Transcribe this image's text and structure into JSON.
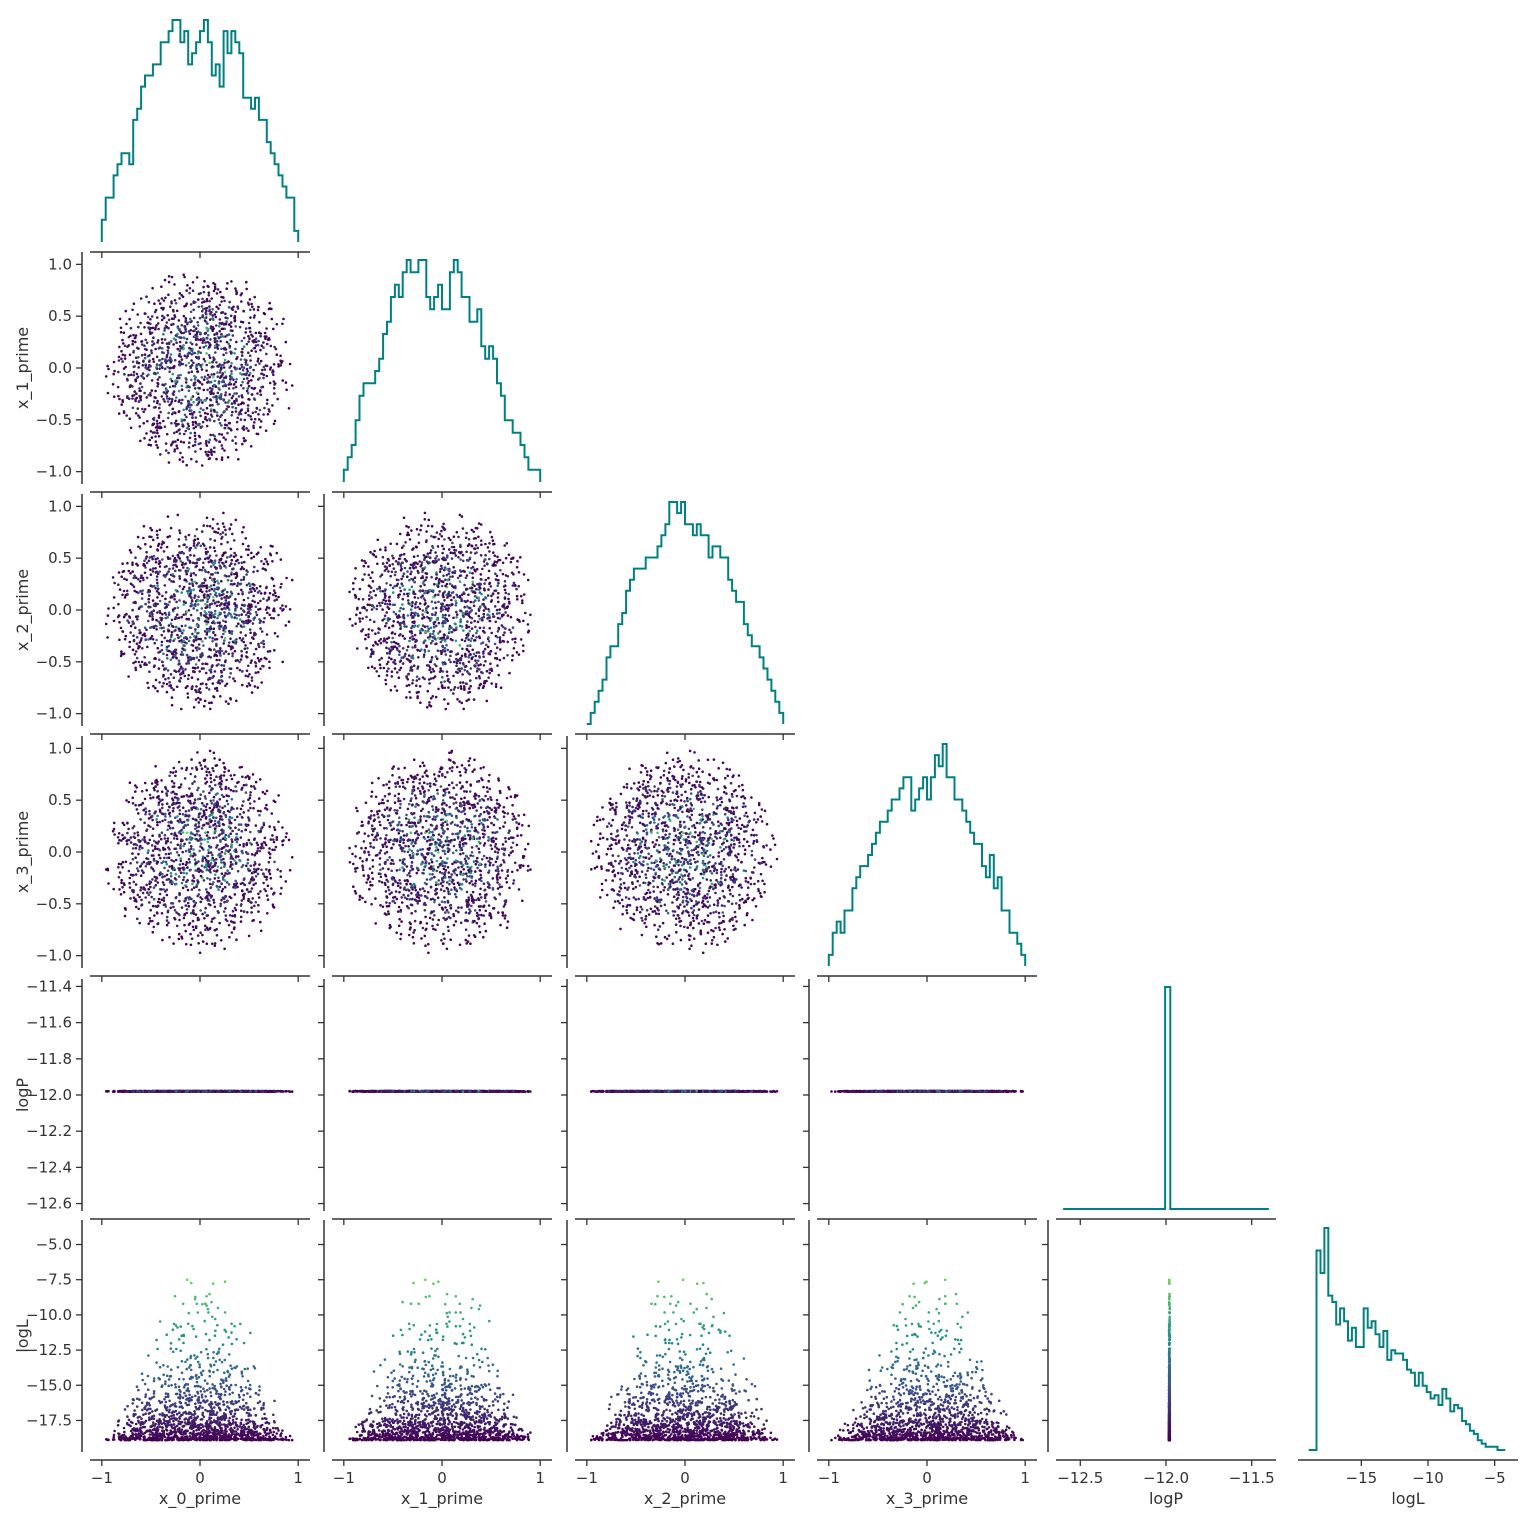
{
  "chart_data": {
    "type": "scatter",
    "title": "",
    "variables": [
      "x_0_prime",
      "x_1_prime",
      "x_2_prime",
      "x_3_prime",
      "logP",
      "logL"
    ],
    "layout": "corner",
    "diagonal": "step-histogram",
    "histogram_color": "#008080",
    "colormap": "viridis",
    "color_by": "logL",
    "colormap_stops": [
      "#440154",
      "#3b528b",
      "#21918c",
      "#5ec962",
      "#fde725"
    ],
    "grid": false,
    "n_samples_shown": 1400,
    "ranges": {
      "x_0_prime": [
        -1,
        1
      ],
      "x_1_prime": [
        -1,
        1
      ],
      "x_2_prime": [
        -1,
        1
      ],
      "x_3_prime": [
        -1,
        1
      ],
      "logP": [
        -12.6,
        -11.4
      ],
      "logL": [
        -18.9,
        -4.2
      ]
    },
    "view_limits": {
      "x_0_prime": [
        -1.1,
        1.1
      ],
      "x_1_prime": [
        -1.1,
        1.1
      ],
      "x_2_prime": [
        -1.1,
        1.1
      ],
      "x_3_prime": [
        -1.1,
        1.1
      ],
      "logP": [
        -12.63,
        -11.37
      ],
      "logL": [
        -19.6,
        -3.4
      ]
    },
    "row_ticks": {
      "x_1_prime": [
        "1.0",
        "0.5",
        "0.0",
        "−0.5",
        "−1.0"
      ],
      "x_2_prime": [
        "1.0",
        "0.5",
        "0.0",
        "−0.5",
        "−1.0"
      ],
      "x_3_prime": [
        "1.0",
        "0.5",
        "0.0",
        "−0.5",
        "−1.0"
      ],
      "logP": [
        "−11.4",
        "−11.6",
        "−11.8",
        "−12.0",
        "−12.2",
        "−12.4",
        "−12.6"
      ],
      "logL": [
        "−5.0",
        "−7.5",
        "−10.0",
        "−12.5",
        "−15.0",
        "−17.5"
      ]
    },
    "row_tick_values": {
      "x_1_prime": [
        1,
        0.5,
        0,
        -0.5,
        -1
      ],
      "x_2_prime": [
        1,
        0.5,
        0,
        -0.5,
        -1
      ],
      "x_3_prime": [
        1,
        0.5,
        0,
        -0.5,
        -1
      ],
      "logP": [
        -11.4,
        -11.6,
        -11.8,
        -12.0,
        -12.2,
        -12.4,
        -12.6
      ],
      "logL": [
        -5,
        -7.5,
        -10,
        -12.5,
        -15,
        -17.5
      ]
    },
    "col_ticks": {
      "x_0_prime": [
        "−1",
        "0",
        "1"
      ],
      "x_1_prime": [
        "−1",
        "0",
        "1"
      ],
      "x_2_prime": [
        "−1",
        "0",
        "1"
      ],
      "x_3_prime": [
        "−1",
        "0",
        "1"
      ],
      "logP": [
        "−12.5",
        "−12.0",
        "−11.5"
      ],
      "logL": [
        "−15",
        "−10",
        "−5"
      ]
    },
    "col_tick_values": {
      "x_0_prime": [
        -1,
        0,
        1
      ],
      "x_1_prime": [
        -1,
        0,
        1
      ],
      "x_2_prime": [
        -1,
        0,
        1
      ],
      "x_3_prime": [
        -1,
        0,
        1
      ],
      "logP": [
        -12.5,
        -12.0,
        -11.5
      ],
      "logL": [
        -15,
        -10,
        -5
      ]
    },
    "logP_value": -11.98,
    "histograms": {
      "x_0_prime": {
        "edges_range": [
          -1,
          1
        ],
        "counts": [
          4,
          8,
          8,
          12,
          14,
          16,
          16,
          14,
          22,
          24,
          28,
          30,
          30,
          32,
          32,
          36,
          36,
          38,
          40,
          40,
          36,
          38,
          32,
          34,
          36,
          38,
          40,
          36,
          30,
          32,
          28,
          38,
          34,
          38,
          36,
          34,
          26,
          26,
          24,
          26,
          22,
          22,
          18,
          16,
          14,
          12,
          10,
          8,
          8,
          2
        ]
      },
      "x_1_prime": {
        "edges_range": [
          -1,
          1
        ],
        "counts": [
          2,
          4,
          6,
          10,
          14,
          16,
          16,
          16,
          18,
          20,
          24,
          26,
          30,
          32,
          30,
          34,
          36,
          34,
          34,
          36,
          36,
          30,
          28,
          30,
          32,
          28,
          28,
          34,
          36,
          34,
          30,
          30,
          26,
          26,
          28,
          22,
          20,
          22,
          20,
          16,
          14,
          10,
          10,
          8,
          8,
          6,
          4,
          2,
          2,
          2
        ]
      },
      "x_2_prime": {
        "edges_range": [
          -1,
          1
        ],
        "counts": [
          0,
          2,
          4,
          6,
          8,
          12,
          14,
          14,
          18,
          20,
          24,
          26,
          28,
          28,
          28,
          30,
          30,
          30,
          32,
          34,
          36,
          40,
          40,
          38,
          40,
          36,
          36,
          34,
          36,
          34,
          34,
          30,
          32,
          32,
          30,
          30,
          26,
          24,
          22,
          22,
          18,
          16,
          14,
          14,
          12,
          10,
          8,
          6,
          4,
          2
        ]
      },
      "x_3_prime": {
        "edges_range": [
          -1,
          1
        ],
        "counts": [
          2,
          6,
          8,
          6,
          10,
          10,
          14,
          16,
          18,
          18,
          20,
          22,
          24,
          26,
          26,
          28,
          30,
          30,
          32,
          34,
          34,
          28,
          30,
          32,
          34,
          30,
          34,
          38,
          36,
          40,
          34,
          34,
          30,
          30,
          28,
          26,
          24,
          22,
          22,
          18,
          16,
          20,
          14,
          16,
          10,
          10,
          6,
          6,
          4,
          2
        ]
      },
      "logP": {
        "edges_range": [
          -12.6,
          -11.4
        ],
        "spike_bin": [
          -12.005,
          -11.975
        ],
        "counts_relative": [
          1.0
        ]
      },
      "logL": {
        "edges_range": [
          -18.95,
          -4.2
        ],
        "counts": [
          0,
          0,
          62,
          55,
          69,
          48,
          46,
          39,
          44,
          40,
          34,
          38,
          32,
          32,
          44,
          38,
          40,
          36,
          32,
          37,
          28,
          31,
          30,
          30,
          28,
          25,
          24,
          20,
          24,
          20,
          18,
          16,
          17,
          14,
          19,
          16,
          12,
          14,
          13,
          9,
          8,
          6,
          5,
          3,
          2,
          1,
          1,
          1,
          0,
          0
        ]
      }
    }
  }
}
